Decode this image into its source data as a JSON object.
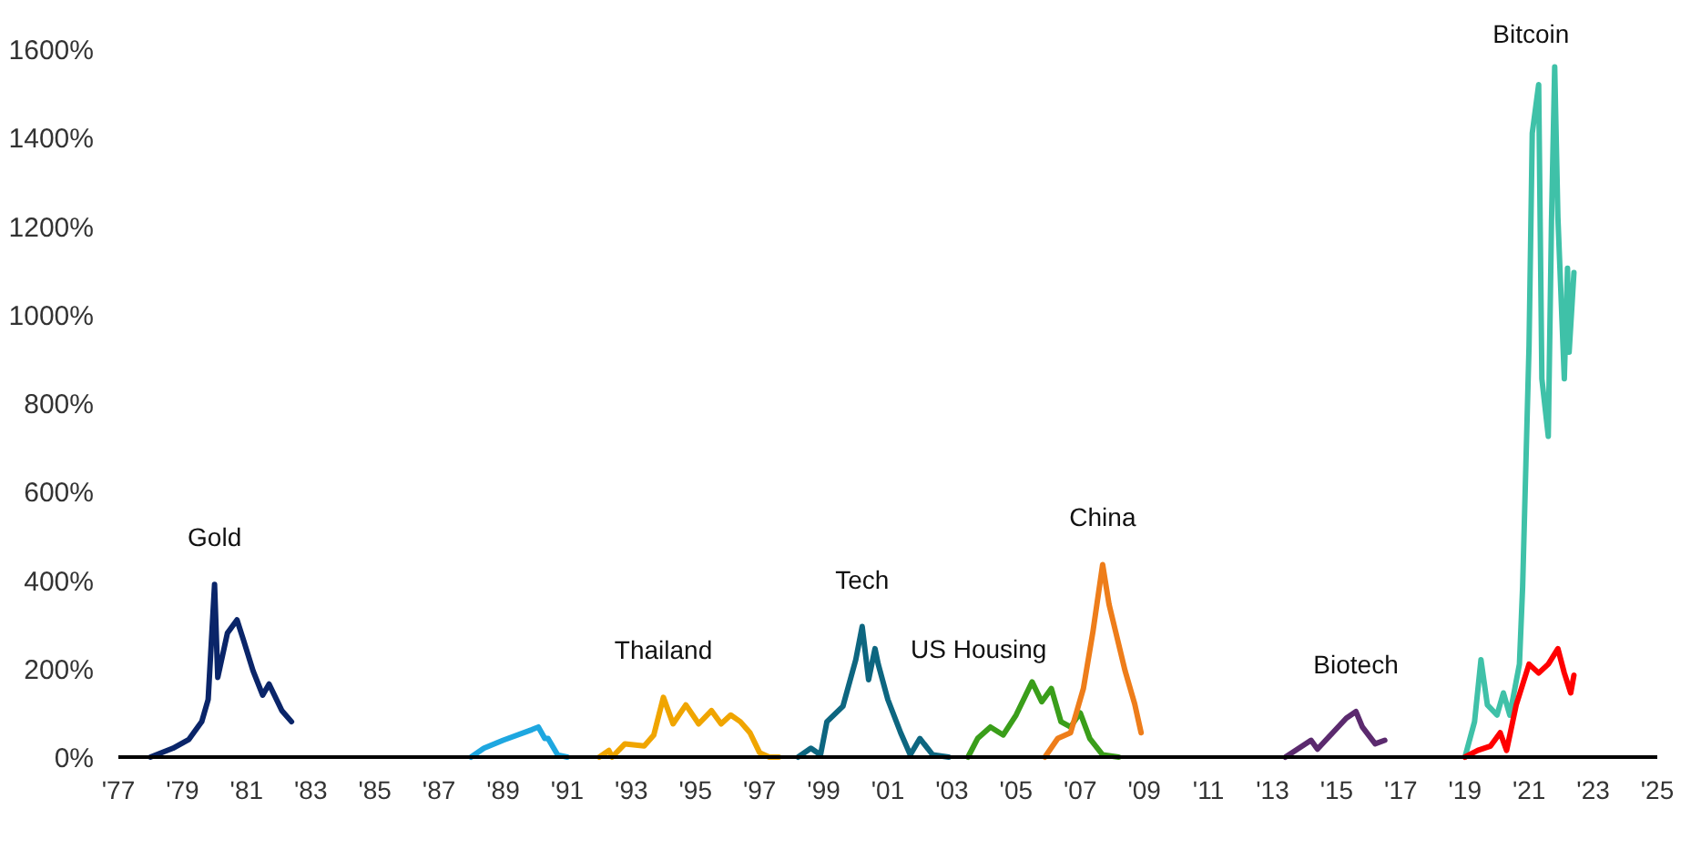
{
  "chart_data": {
    "type": "line",
    "legend": false,
    "grid": false,
    "marker": "none",
    "line_style": "solid",
    "xlim": [
      1977,
      2025
    ],
    "ylim": [
      0,
      1600
    ],
    "xticks": [
      {
        "value": 1977,
        "label": "'77"
      },
      {
        "value": 1979,
        "label": "'79"
      },
      {
        "value": 1981,
        "label": "'81"
      },
      {
        "value": 1983,
        "label": "'83"
      },
      {
        "value": 1985,
        "label": "'85"
      },
      {
        "value": 1987,
        "label": "'87"
      },
      {
        "value": 1989,
        "label": "'89"
      },
      {
        "value": 1991,
        "label": "'91"
      },
      {
        "value": 1993,
        "label": "'93"
      },
      {
        "value": 1995,
        "label": "'95"
      },
      {
        "value": 1997,
        "label": "'97"
      },
      {
        "value": 1999,
        "label": "'99"
      },
      {
        "value": 2001,
        "label": "'01"
      },
      {
        "value": 2003,
        "label": "'03"
      },
      {
        "value": 2005,
        "label": "'05"
      },
      {
        "value": 2007,
        "label": "'07"
      },
      {
        "value": 2009,
        "label": "'09"
      },
      {
        "value": 2011,
        "label": "'11"
      },
      {
        "value": 2013,
        "label": "'13"
      },
      {
        "value": 2015,
        "label": "'15"
      },
      {
        "value": 2017,
        "label": "'17"
      },
      {
        "value": 2019,
        "label": "'19"
      },
      {
        "value": 2021,
        "label": "'21"
      },
      {
        "value": 2023,
        "label": "'23"
      },
      {
        "value": 2025,
        "label": "'25"
      }
    ],
    "yticks": [
      {
        "value": 0,
        "label": "0%"
      },
      {
        "value": 200,
        "label": "200%"
      },
      {
        "value": 400,
        "label": "400%"
      },
      {
        "value": 600,
        "label": "600%"
      },
      {
        "value": 800,
        "label": "800%"
      },
      {
        "value": 1000,
        "label": "1000%"
      },
      {
        "value": 1200,
        "label": "1200%"
      },
      {
        "value": 1400,
        "label": "1400%"
      },
      {
        "value": 1600,
        "label": "1600%"
      }
    ],
    "series": [
      {
        "name": "Gold",
        "color": "#0a2569",
        "x": [
          1978.0,
          1978.7,
          1979.2,
          1979.6,
          1979.8,
          1980.0,
          1980.1,
          1980.4,
          1980.7,
          1980.9,
          1981.2,
          1981.5,
          1981.7,
          1982.1,
          1982.4
        ],
        "values": [
          0,
          20,
          40,
          80,
          130,
          390,
          180,
          280,
          310,
          265,
          195,
          140,
          165,
          105,
          80
        ]
      },
      {
        "color": "#1ea7e0",
        "x": [
          1988.0,
          1988.4,
          1989.0,
          1989.9,
          1990.1,
          1990.3,
          1990.4,
          1990.7,
          1991.0
        ],
        "values": [
          0,
          20,
          38,
          62,
          68,
          42,
          42,
          5,
          0
        ]
      },
      {
        "name": "Thailand",
        "color": "#f0a500",
        "x": [
          1992.0,
          1992.3,
          1992.4,
          1992.8,
          1993.4,
          1993.7,
          1994.0,
          1994.3,
          1994.7,
          1995.1,
          1995.5,
          1995.8,
          1996.1,
          1996.4,
          1996.7,
          1997.0,
          1997.3,
          1997.6
        ],
        "values": [
          0,
          15,
          0,
          30,
          25,
          50,
          135,
          75,
          118,
          75,
          105,
          75,
          95,
          80,
          55,
          10,
          0,
          0
        ]
      },
      {
        "name": "Tech",
        "color": "#0d6680",
        "x": [
          1998.2,
          1998.6,
          1998.9,
          1999.1,
          1999.6,
          2000.0,
          2000.2,
          2000.4,
          2000.6,
          2000.7,
          2001.0,
          2001.4,
          2001.7,
          2002.0,
          2002.4,
          2002.9
        ],
        "values": [
          0,
          20,
          5,
          80,
          115,
          220,
          295,
          175,
          245,
          210,
          130,
          55,
          5,
          42,
          5,
          0
        ]
      },
      {
        "name": "US Housing",
        "color": "#3a9e1a",
        "x": [
          2003.5,
          2003.8,
          2004.2,
          2004.6,
          2005.0,
          2005.5,
          2005.8,
          2006.1,
          2006.4,
          2006.7,
          2007.0,
          2007.3,
          2007.7,
          2008.2
        ],
        "values": [
          0,
          42,
          68,
          50,
          95,
          170,
          125,
          155,
          80,
          68,
          100,
          42,
          5,
          0
        ]
      },
      {
        "name": "China",
        "color": "#ee7d1a",
        "x": [
          2005.9,
          2006.3,
          2006.7,
          2007.1,
          2007.4,
          2007.7,
          2007.9,
          2008.1,
          2008.4,
          2008.7,
          2008.9
        ],
        "values": [
          0,
          42,
          55,
          155,
          285,
          435,
          345,
          285,
          195,
          120,
          55
        ]
      },
      {
        "name": "Biotech",
        "color": "#5b2a6e",
        "x": [
          2013.4,
          2014.2,
          2014.4,
          2015.3,
          2015.6,
          2015.8,
          2016.2,
          2016.5
        ],
        "values": [
          0,
          38,
          18,
          88,
          103,
          68,
          30,
          38
        ]
      },
      {
        "name": "Bitcoin",
        "color": "#3fc1a8",
        "x": [
          2019.0,
          2019.3,
          2019.5,
          2019.7,
          2020.0,
          2020.2,
          2020.4,
          2020.7,
          2020.8,
          2021.0,
          2021.1,
          2021.3,
          2021.4,
          2021.6,
          2021.7,
          2021.8,
          2021.9,
          2022.1,
          2022.2,
          2022.25,
          2022.4
        ],
        "values": [
          0,
          80,
          220,
          118,
          95,
          145,
          95,
          210,
          385,
          930,
          1410,
          1520,
          855,
          725,
          1210,
          1560,
          1220,
          855,
          1105,
          915,
          1095
        ]
      },
      {
        "color": "#ff0000",
        "x": [
          2019.0,
          2019.4,
          2019.8,
          2020.1,
          2020.3,
          2020.6,
          2021.0,
          2021.3,
          2021.6,
          2021.9,
          2022.1,
          2022.3,
          2022.4
        ],
        "values": [
          0,
          15,
          25,
          55,
          15,
          118,
          210,
          190,
          210,
          245,
          190,
          145,
          185
        ]
      }
    ]
  }
}
